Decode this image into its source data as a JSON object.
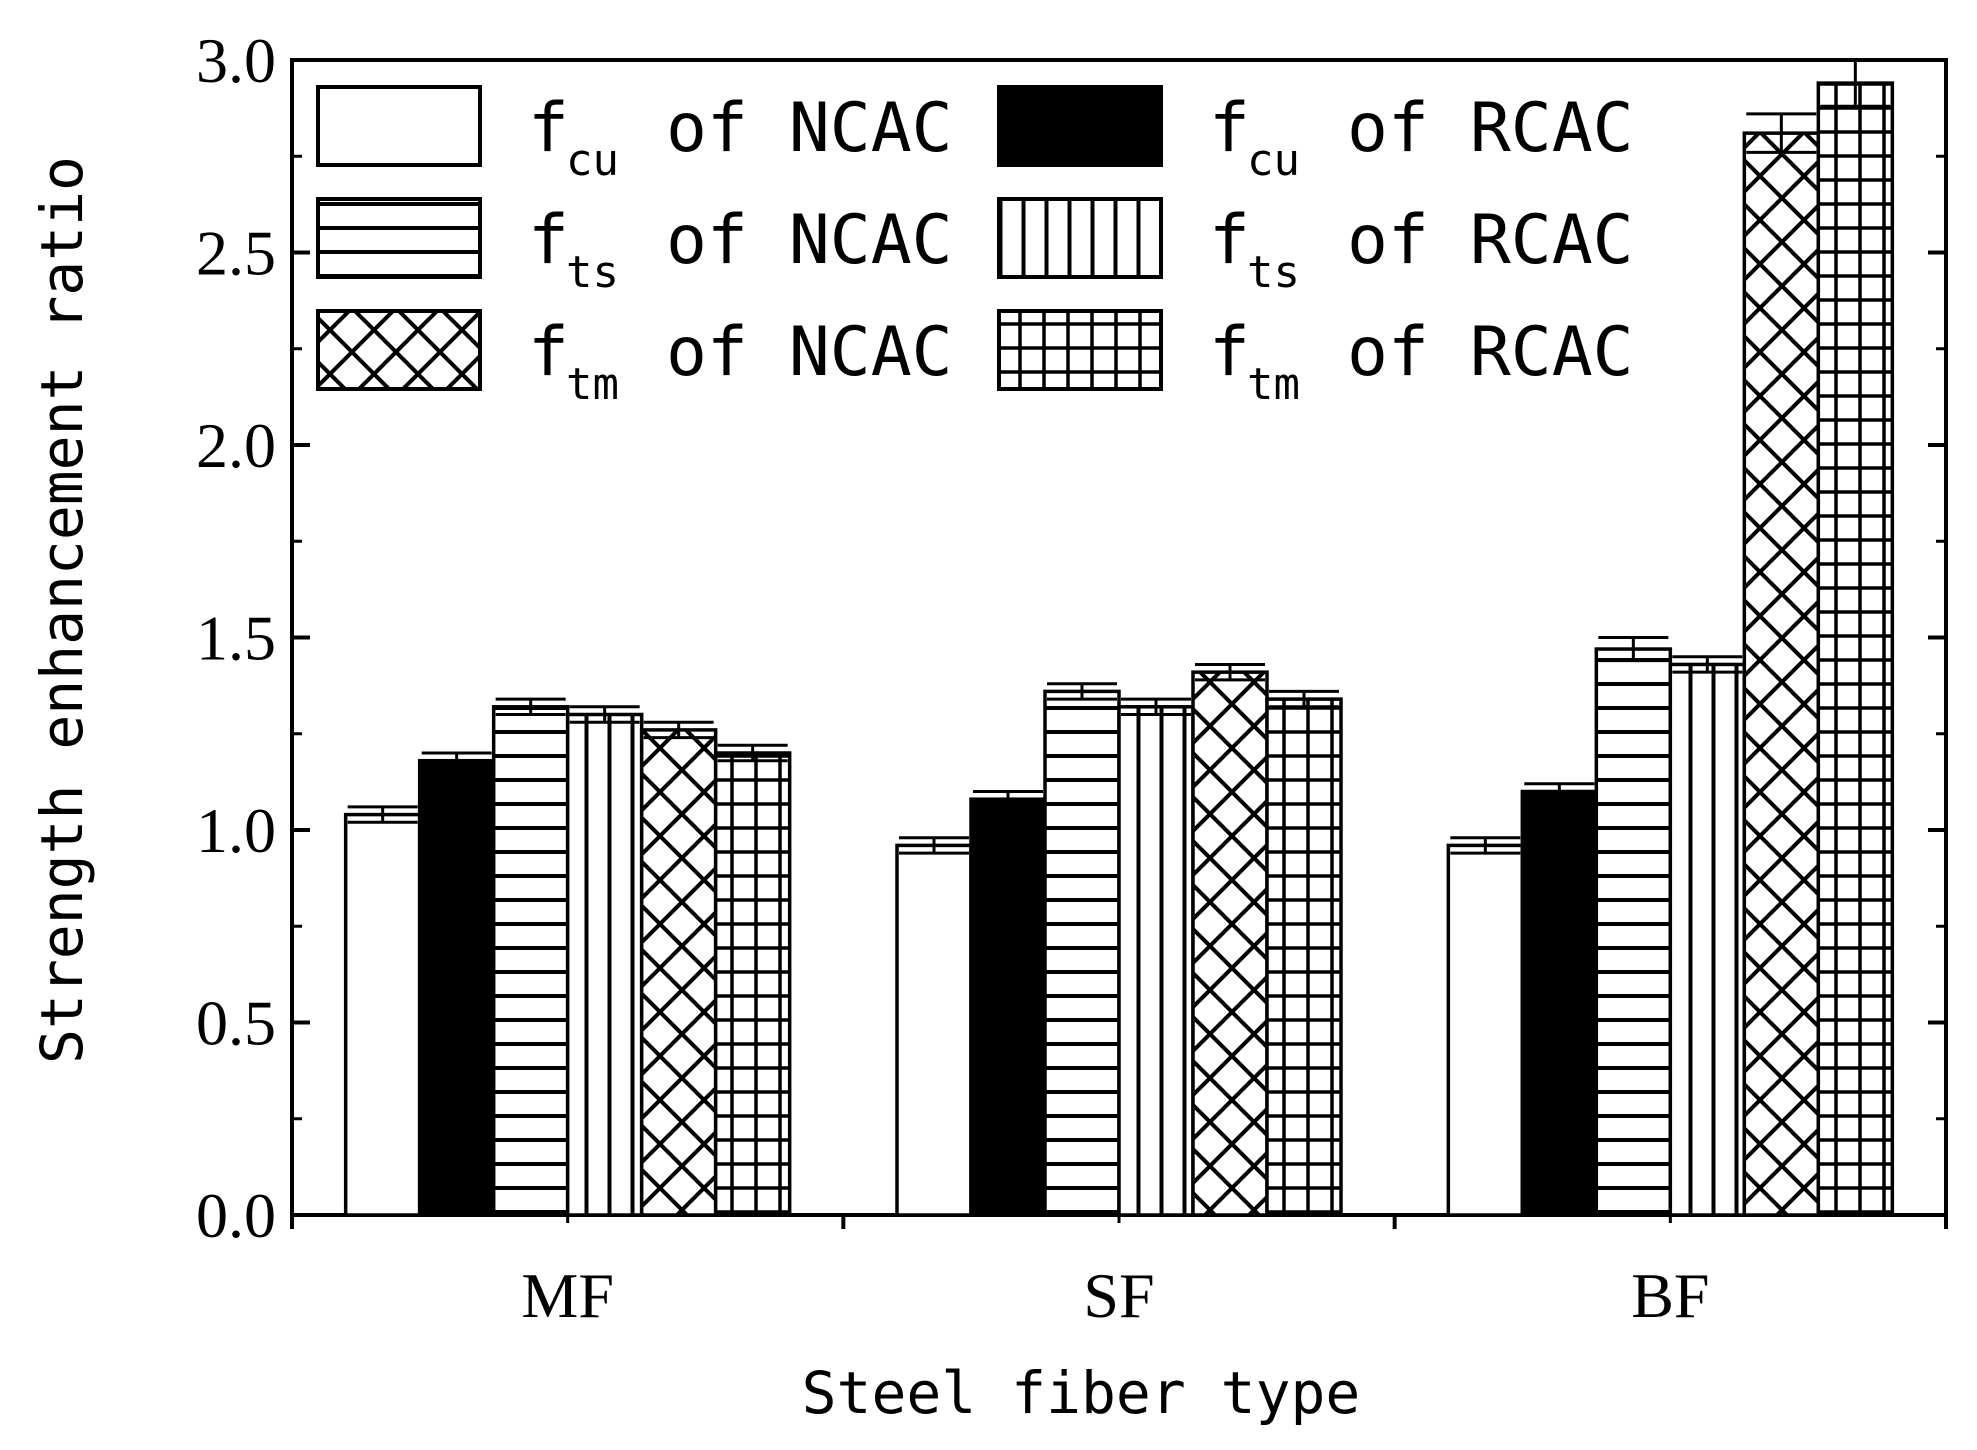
{
  "chart_data": {
    "type": "bar",
    "title": "",
    "xlabel": "Steel fiber type",
    "ylabel": "Strength enhancement ratio",
    "ylim": [
      0,
      3.0
    ],
    "yticks": [
      "0.0",
      "0.5",
      "1.0",
      "1.5",
      "2.0",
      "2.5",
      "3.0"
    ],
    "categories": [
      "MF",
      "SF",
      "BF"
    ],
    "legend_position": "top-left",
    "series": [
      {
        "name": "fcu of NCAC",
        "main": "f",
        "sub": "cu",
        "rest": "of NCAC",
        "pattern": "white",
        "values": [
          1.04,
          0.96,
          0.96
        ],
        "errors": [
          0.02,
          0.02,
          0.02
        ]
      },
      {
        "name": "fcu of RCAC",
        "main": "f",
        "sub": "cu",
        "rest": "of RCAC",
        "pattern": "black",
        "values": [
          1.18,
          1.08,
          1.1
        ],
        "errors": [
          0.02,
          0.02,
          0.02
        ]
      },
      {
        "name": "fts of NCAC",
        "main": "f",
        "sub": "ts",
        "rest": "of NCAC",
        "pattern": "horizontal",
        "values": [
          1.32,
          1.36,
          1.47
        ],
        "errors": [
          0.02,
          0.02,
          0.03
        ]
      },
      {
        "name": "fts of RCAC",
        "main": "f",
        "sub": "ts",
        "rest": "of RCAC",
        "pattern": "vertical",
        "values": [
          1.3,
          1.32,
          1.43
        ],
        "errors": [
          0.02,
          0.02,
          0.02
        ]
      },
      {
        "name": "ftm of NCAC",
        "main": "f",
        "sub": "tm",
        "rest": "of NCAC",
        "pattern": "crosshatch",
        "values": [
          1.26,
          1.41,
          2.81
        ],
        "errors": [
          0.02,
          0.02,
          0.05
        ]
      },
      {
        "name": "ftm of RCAC",
        "main": "f",
        "sub": "tm",
        "rest": "of RCAC",
        "pattern": "grid",
        "values": [
          1.2,
          1.34,
          2.94
        ],
        "errors": [
          0.02,
          0.02,
          0.06
        ]
      }
    ]
  }
}
